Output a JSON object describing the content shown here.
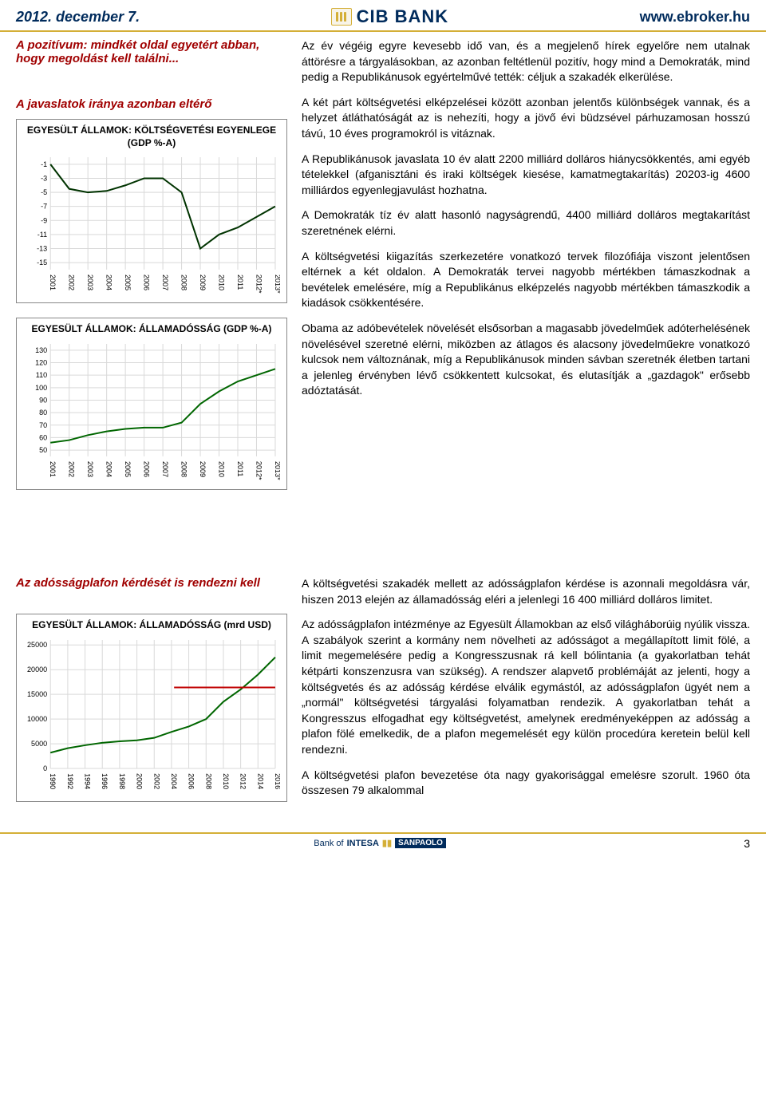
{
  "header": {
    "date": "2012. december 7.",
    "bank_name": "CIB BANK",
    "url": "www.ebroker.hu"
  },
  "left": {
    "heading1": "A pozitívum: mindkét oldal egyetért abban, hogy megoldást kell találni...",
    "heading2": "A javaslatok iránya azonban eltérő",
    "heading3": "Az adósságplafon kérdését is rendezni kell"
  },
  "charts": {
    "budget": {
      "type": "line",
      "title": "EGYESÜLT ÁLLAMOK: KÖLTSÉGVETÉSI EGYENLEGE (GDP %-A)",
      "x_labels": [
        "2001",
        "2002",
        "2003",
        "2004",
        "2005",
        "2006",
        "2007",
        "2008",
        "2009",
        "2010",
        "2011",
        "2012*",
        "2013*"
      ],
      "y_ticks": [
        -1,
        -3,
        -5,
        -7,
        -9,
        -11,
        -13,
        -15
      ],
      "ylim": [
        -16,
        0
      ],
      "values": [
        -1,
        -4.5,
        -5,
        -4.8,
        -4,
        -3,
        -3,
        -5,
        -13,
        -11,
        -10,
        -8.5,
        -7
      ],
      "line_color": "#003300",
      "line_width": 2,
      "grid_color": "#d9d9d9",
      "label_fontsize": 9
    },
    "debt_pct": {
      "type": "line",
      "title": "EGYESÜLT ÁLLAMOK: ÁLLAMADÓSSÁG (GDP %-A)",
      "x_labels": [
        "2001",
        "2002",
        "2003",
        "2004",
        "2005",
        "2006",
        "2007",
        "2008",
        "2009",
        "2010",
        "2011",
        "2012*",
        "2013*"
      ],
      "y_ticks": [
        50,
        60,
        70,
        80,
        90,
        100,
        110,
        120,
        130
      ],
      "ylim": [
        45,
        135
      ],
      "values": [
        56,
        58,
        62,
        65,
        67,
        68,
        68,
        72,
        87,
        97,
        105,
        110,
        115
      ],
      "line_color": "#006600",
      "line_width": 2,
      "grid_color": "#d9d9d9",
      "label_fontsize": 9
    },
    "debt_usd": {
      "type": "line",
      "title": "EGYESÜLT ÁLLAMOK: ÁLLAMADÓSSÁG (mrd USD)",
      "x_labels": [
        "1990",
        "1992",
        "1994",
        "1996",
        "1998",
        "2000",
        "2002",
        "2004",
        "2006",
        "2008",
        "2010",
        "2012",
        "2014",
        "2016"
      ],
      "y_ticks": [
        0,
        5000,
        10000,
        15000,
        20000,
        25000
      ],
      "ylim": [
        0,
        26000
      ],
      "values": [
        3200,
        4100,
        4700,
        5200,
        5500,
        5700,
        6200,
        7400,
        8500,
        10000,
        13500,
        16000,
        19000,
        22500
      ],
      "line_color": "#006600",
      "line_width": 2,
      "limit_line_y": 16400,
      "limit_line_color": "#c00000",
      "grid_color": "#d9d9d9",
      "label_fontsize": 9
    }
  },
  "body": {
    "p1": "Az év végéig egyre kevesebb idő van, és a megjelenő hírek egyelőre nem utalnak áttörésre a tárgyalásokban, az azonban feltétlenül pozitív, hogy mind a Demokraták, mind pedig a Republikánusok egyértelművé tették: céljuk a szakadék elkerülése.",
    "p2": "A két párt költségvetési elképzelései között azonban jelentős különbségek vannak, és a helyzet átláthatóságát az is nehezíti, hogy a jövő évi büdzsével párhuzamosan hosszú távú, 10 éves programokról is vitáznak.",
    "p3": "A Republikánusok javaslata 10 év alatt 2200 milliárd dolláros hiánycsökkentés, ami egyéb tételekkel (afganisztáni és iraki költségek kiesése, kamatmegtakarítás) 20203-ig 4600 milliárdos egyenlegjavulást hozhatna.",
    "p4": "A Demokraták tíz év alatt hasonló nagyságrendű, 4400 milliárd dolláros megtakarítást szeretnének elérni.",
    "p5": "A költségvetési kiigazítás szerkezetére vonatkozó tervek filozófiája viszont jelentősen eltérnek a két oldalon. A Demokraták tervei nagyobb mértékben támaszkodnak a bevételek emelésére, míg a Republikánus elképzelés nagyobb mértékben támaszkodik a kiadások csökkentésére.",
    "p6": "Obama az adóbevételek növelését elsősorban a magasabb jövedelműek adóterhelésének növelésével szeretné elérni, miközben az átlagos és alacsony jövedelműekre vonatkozó kulcsok nem változnának, míg a Republikánusok minden sávban szeretnék életben tartani a jelenleg érvényben lévő csökkentett kulcsokat, és elutasítják a „gazdagok\" erősebb adóztatását.",
    "p7": "A költségvetési szakadék mellett az adósságplafon kérdése is azonnali megoldásra vár, hiszen 2013 elején az államadósság eléri a jelenlegi 16 400 milliárd dolláros limitet.",
    "p8": "Az adósságplafon intézménye az Egyesült Államokban az első világháborúig nyúlik vissza. A szabályok szerint a kormány nem növelheti az adósságot a megállapított limit fölé, a limit megemelésére pedig a Kongresszusnak rá kell bólintania (a gyakorlatban tehát kétpárti konszenzusra van szükség). A rendszer alapvető problémáját az jelenti, hogy a költségvetés és az adósság kérdése elválik egymástól, az adósságplafon ügyét nem a „normál\" költségvetési tárgyalási folyamatban rendezik. A gyakorlatban tehát a Kongresszus elfogadhat egy költségvetést, amelynek eredményeképpen az adósság a plafon fölé emelkedik, de a plafon megemelését egy külön procedúra keretein belül kell rendezni.",
    "p9": "A költségvetési plafon bevezetése óta nagy gyakorisággal emelésre szorult. 1960 óta összesen 79 alkalommal"
  },
  "footer": {
    "bank_of": "Bank of",
    "brand": "INTESA",
    "subbrand": "SANPAOLO",
    "page": "3"
  }
}
